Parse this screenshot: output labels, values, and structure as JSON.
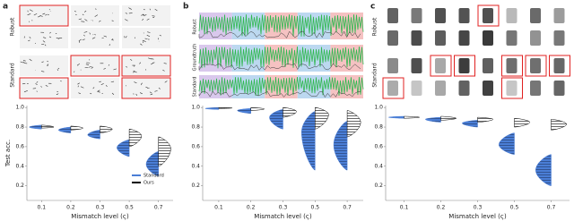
{
  "panels": [
    {
      "label": "a",
      "row_labels": [
        "Robust",
        "Standard"
      ]
    },
    {
      "label": "b",
      "row_labels": [
        "Robust",
        "Groundtruth",
        "Standard"
      ]
    },
    {
      "label": "c",
      "row_labels": [
        "Robust",
        "Standard"
      ]
    }
  ],
  "chart_data": [
    {
      "type": "violin",
      "xlabel": "Mismatch level (ς)",
      "ylabel": "Test acc.",
      "categories": [
        "0.1",
        "0.2",
        "0.3",
        "0.5",
        "0.7"
      ],
      "ylim": [
        0.05,
        1.02
      ],
      "yticks": [
        0.2,
        0.4,
        0.6,
        0.8,
        {
          "value": 1,
          "label": "1.0"
        }
      ],
      "legend": "lower right",
      "series": [
        {
          "name": "Standard",
          "color": "#4a7ed6",
          "median": [
            0.8,
            0.77,
            0.72,
            0.59,
            0.42
          ],
          "min": [
            0.78,
            0.74,
            0.68,
            0.5,
            0.3
          ],
          "max": [
            0.82,
            0.8,
            0.77,
            0.67,
            0.55
          ]
        },
        {
          "name": "Ours",
          "color": "#000000",
          "median": [
            0.8,
            0.79,
            0.78,
            0.71,
            0.58
          ],
          "min": [
            0.79,
            0.77,
            0.74,
            0.6,
            0.4
          ],
          "max": [
            0.82,
            0.81,
            0.81,
            0.78,
            0.7
          ]
        }
      ]
    },
    {
      "type": "violin",
      "xlabel": "Mismatch level (ς)",
      "categories": [
        "0.1",
        "0.2",
        "0.3",
        "0.5",
        "0.7"
      ],
      "ylim": [
        0.05,
        1.02
      ],
      "yticks": [
        0.2,
        0.4,
        0.6,
        0.8,
        {
          "value": 1,
          "label": "1.0"
        }
      ],
      "series": [
        {
          "color": "#4a7ed6",
          "median": [
            0.99,
            0.97,
            0.9,
            0.75,
            0.62
          ],
          "min": [
            0.98,
            0.94,
            0.78,
            0.36,
            0.36
          ],
          "max": [
            1,
            0.99,
            0.98,
            0.96,
            0.86
          ]
        },
        {
          "color": "#000000",
          "median": [
            0.995,
            0.985,
            0.96,
            0.93,
            0.85
          ],
          "min": [
            0.99,
            0.97,
            0.9,
            0.78,
            0.7
          ],
          "max": [
            1,
            1,
            1,
            1,
            0.97
          ]
        }
      ]
    },
    {
      "type": "violin",
      "xlabel": "Mismatch level (ς)",
      "categories": [
        "0.1",
        "0.2",
        "0.3",
        "0.5",
        "0.7"
      ],
      "ylim": [
        0.05,
        1.02
      ],
      "yticks": [
        0.2,
        0.4,
        0.6,
        0.8,
        {
          "value": 1,
          "label": "1.0"
        }
      ],
      "series": [
        {
          "color": "#4a7ed6",
          "median": [
            0.9,
            0.88,
            0.84,
            0.62,
            0.36
          ],
          "min": [
            0.89,
            0.85,
            0.8,
            0.52,
            0.2
          ],
          "max": [
            0.91,
            0.9,
            0.87,
            0.74,
            0.52
          ]
        },
        {
          "color": "#000000",
          "median": [
            0.9,
            0.89,
            0.88,
            0.85,
            0.83
          ],
          "min": [
            0.89,
            0.87,
            0.85,
            0.8,
            0.77
          ],
          "max": [
            0.91,
            0.91,
            0.9,
            0.89,
            0.88
          ]
        }
      ]
    }
  ]
}
